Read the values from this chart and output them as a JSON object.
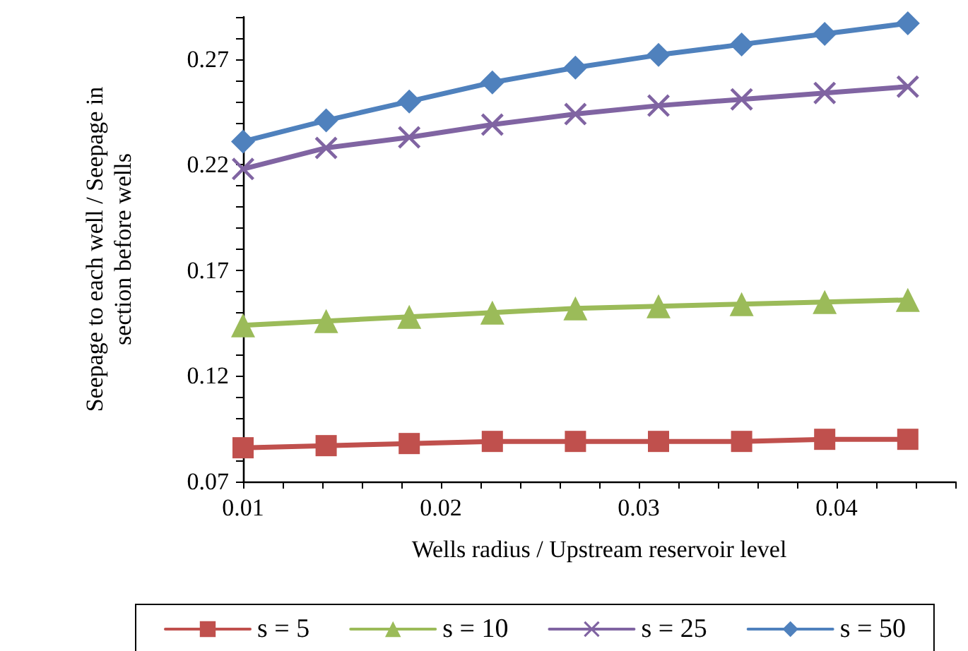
{
  "chart_data": {
    "type": "line",
    "xlabel": "Wells radius / Upstream reservoir level",
    "ylabel": "Seepage to each well / Seepage in\nsection before wells",
    "x": [
      0.01,
      0.0142,
      0.0184,
      0.0226,
      0.0268,
      0.031,
      0.0352,
      0.0394,
      0.0436
    ],
    "series": [
      {
        "name": "s = 5",
        "color": "#c0504d",
        "marker": "square",
        "values": [
          0.086,
          0.087,
          0.088,
          0.089,
          0.089,
          0.089,
          0.089,
          0.09,
          0.09
        ]
      },
      {
        "name": "s = 10",
        "color": "#9bbb59",
        "marker": "triangle",
        "values": [
          0.144,
          0.146,
          0.148,
          0.15,
          0.152,
          0.153,
          0.154,
          0.155,
          0.156
        ]
      },
      {
        "name": "s = 25",
        "color": "#8064a2",
        "marker": "cross",
        "values": [
          0.218,
          0.228,
          0.233,
          0.239,
          0.244,
          0.248,
          0.251,
          0.254,
          0.257
        ]
      },
      {
        "name": "s = 50",
        "color": "#4f81bd",
        "marker": "diamond",
        "values": [
          0.231,
          0.241,
          0.25,
          0.259,
          0.266,
          0.272,
          0.277,
          0.282,
          0.287
        ]
      }
    ],
    "xlim": [
      0.01,
      0.046
    ],
    "xticks": [
      0.01,
      {
        "value": 0.012,
        "label": null
      },
      {
        "value": 0.014,
        "label": null
      },
      {
        "value": 0.016,
        "label": null
      },
      {
        "value": 0.018,
        "label": null
      },
      0.02,
      {
        "value": 0.022,
        "label": null
      },
      {
        "value": 0.024,
        "label": null
      },
      {
        "value": 0.026,
        "label": null
      },
      {
        "value": 0.028,
        "label": null
      },
      0.03,
      {
        "value": 0.032,
        "label": null
      },
      {
        "value": 0.034,
        "label": null
      },
      {
        "value": 0.036,
        "label": null
      },
      {
        "value": 0.038,
        "label": null
      },
      0.04,
      {
        "value": 0.042,
        "label": null
      },
      {
        "value": 0.044,
        "label": null
      },
      {
        "value": 0.046,
        "label": null
      }
    ],
    "ylim": [
      0.07,
      0.29
    ],
    "yticks": [
      0.07,
      {
        "value": 0.08,
        "label": null
      },
      {
        "value": 0.09,
        "label": null
      },
      {
        "value": 0.1,
        "label": null
      },
      {
        "value": 0.11,
        "label": null
      },
      0.12,
      {
        "value": 0.13,
        "label": null
      },
      {
        "value": 0.14,
        "label": null
      },
      {
        "value": 0.15,
        "label": null
      },
      {
        "value": 0.16,
        "label": null
      },
      0.17,
      {
        "value": 0.18,
        "label": null
      },
      {
        "value": 0.19,
        "label": null
      },
      {
        "value": 0.2,
        "label": null
      },
      {
        "value": 0.21,
        "label": null
      },
      0.22,
      {
        "value": 0.23,
        "label": null
      },
      {
        "value": 0.24,
        "label": null
      },
      {
        "value": 0.25,
        "label": null
      },
      {
        "value": 0.26,
        "label": null
      },
      0.27,
      {
        "value": 0.28,
        "label": null
      },
      {
        "value": 0.29,
        "label": null
      }
    ],
    "grid": false,
    "legend": "bottom",
    "line_style": "solid"
  }
}
